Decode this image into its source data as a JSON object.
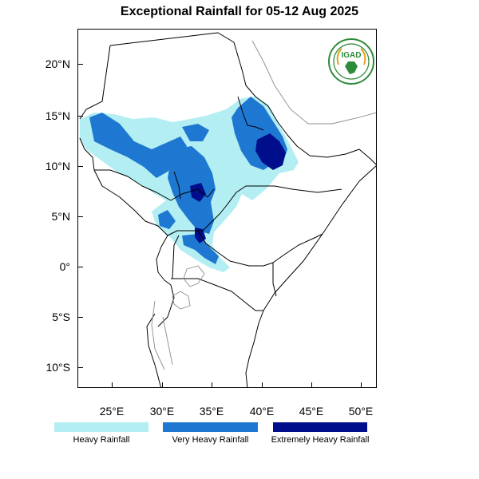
{
  "title": "Exceptional Rainfall for 05-12 Aug 2025",
  "logo_text": "IGAD",
  "axes": {
    "lat_labels": [
      "20°N",
      "15°N",
      "10°N",
      "5°N",
      "0°",
      "5°S",
      "10°S"
    ],
    "lon_labels": [
      "25°E",
      "30°E",
      "35°E",
      "40°E",
      "45°E",
      "50°E"
    ]
  },
  "legend": [
    {
      "label": "Heavy Rainfall",
      "color": "#b3eef2"
    },
    {
      "label": "Very Heavy Rainfall",
      "color": "#1e78d2"
    },
    {
      "label": "Extremely Heavy Rainfall",
      "color": "#000e8c"
    }
  ]
}
